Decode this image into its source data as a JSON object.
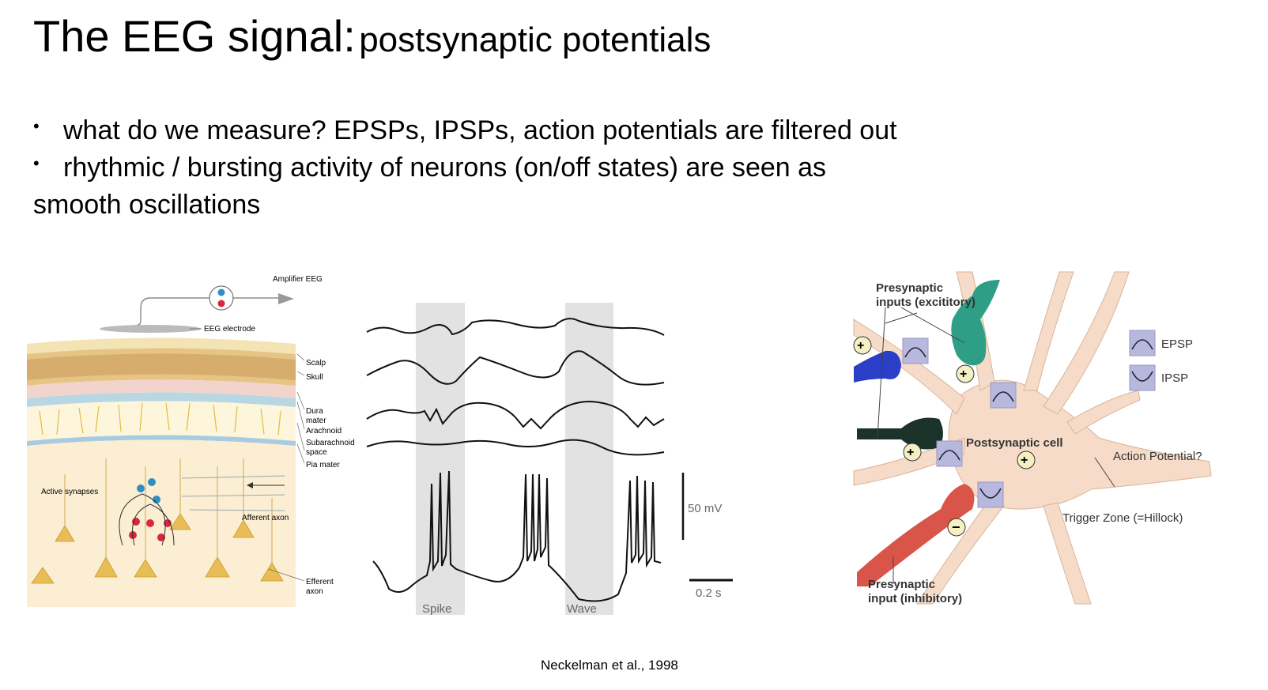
{
  "slide": {
    "title_main": "The EEG signal:",
    "title_sub": "postsynaptic potentials",
    "bullets": [
      "what do we measure? EPSPs, IPSPs, action potentials are filtered out",
      "rhythmic / bursting activity of neurons (on/off states) are seen as",
      "smooth oscillations"
    ],
    "citation": "Neckelman et al., 1998"
  },
  "figure_scalp": {
    "amplifier": "Amplifier EEG",
    "electrode": "EEG electrode",
    "layers": [
      "Scalp",
      "Skull",
      "Dura",
      "mater",
      "Arachnoid",
      "Subarachnoid",
      "space",
      "Pia mater"
    ],
    "active_synapses": "Active synapses",
    "afferent": "Afferent axon",
    "efferent": [
      "Efferent",
      "axon"
    ],
    "colors": {
      "scalp": "#f3dca4",
      "skull": "#e8c98a",
      "dura": "#f2d2cc",
      "arachnoid": "#c3dbe6",
      "neuron": "#e9bd55",
      "plus": "#d6283c",
      "minus": "#2f8fc2"
    }
  },
  "figure_traces": {
    "spike_label": "Spike",
    "wave_label": "Wave",
    "scale_v": "50 mV",
    "scale_t": "0.2 s"
  },
  "figure_neuron": {
    "pre_exc": [
      "Presynaptic",
      "inputs (excititory)"
    ],
    "pre_inh": [
      "Presynaptic",
      "input (inhibitory)"
    ],
    "postsyn": "Postsynaptic cell",
    "action": "Action Potential?",
    "trigger": "Trigger Zone (=Hillock)",
    "legend": [
      "EPSP",
      "IPSP"
    ],
    "colors": {
      "cell": "#f6dcc8",
      "blue": "#2a3ec8",
      "teal": "#2e9e86",
      "dark": "#1b3328",
      "red": "#d9554a",
      "box": "#b8b8de"
    }
  }
}
